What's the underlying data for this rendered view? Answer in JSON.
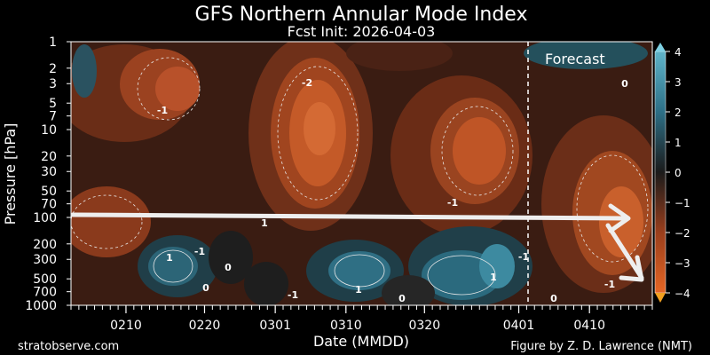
{
  "chart_data": {
    "type": "heatmap",
    "title": "GFS Northern Annular Mode Index",
    "subtitle": "Fcst Init: 2026-04-03",
    "xlabel": "Date (MMDD)",
    "ylabel": "Pressure [hPa]",
    "x_ticks": [
      "0210",
      "0220",
      "0301",
      "0310",
      "0320",
      "0401",
      "0410"
    ],
    "y_ticks": [
      1,
      2,
      3,
      5,
      7,
      10,
      20,
      30,
      50,
      70,
      100,
      200,
      300,
      500,
      700,
      1000
    ],
    "y_scale": "log",
    "ylim": [
      1000,
      1
    ],
    "colorbar_ticks": [
      4,
      3,
      2,
      1,
      0,
      -1,
      -2,
      -3,
      -4
    ],
    "colorbar_range": [
      -4,
      4
    ],
    "colors": {
      "positive": "#2e7f98",
      "neutral": "#222222",
      "negative": "#d65a28"
    },
    "annotations": {
      "forecast_label": "Forecast",
      "forecast_start": "0402",
      "contour_labels": [
        "-1",
        "-2",
        "1",
        "1",
        "-1",
        "0",
        "0",
        "1",
        "-1",
        "-1",
        "1",
        "-1",
        "0",
        "0",
        "-1",
        "0"
      ]
    },
    "overlay": "white arrow along 100 hPa, downward arrow toward 1000 hPa after 0412"
  },
  "footer": {
    "left": "stratobserve.com",
    "right": "Figure by Z. D. Lawrence (NMT)"
  }
}
